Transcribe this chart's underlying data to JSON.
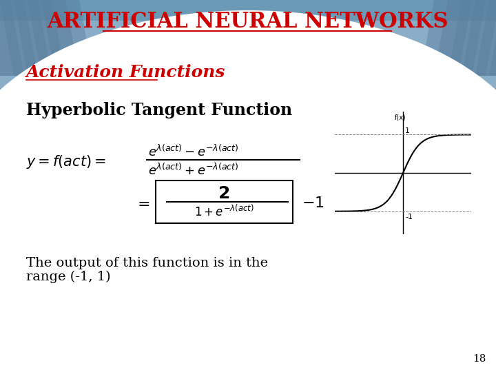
{
  "title": "ARTIFICIAL NEURAL NETWORKS",
  "title_color": "#CC0000",
  "title_fontsize": 22,
  "subtitle": "Activation Functions",
  "subtitle_color": "#CC0000",
  "subtitle_fontsize": 18,
  "heading": "Hyperbolic Tangent Function",
  "heading_color": "#000000",
  "heading_fontsize": 17,
  "slide_number": "18",
  "body_fontsize": 14
}
